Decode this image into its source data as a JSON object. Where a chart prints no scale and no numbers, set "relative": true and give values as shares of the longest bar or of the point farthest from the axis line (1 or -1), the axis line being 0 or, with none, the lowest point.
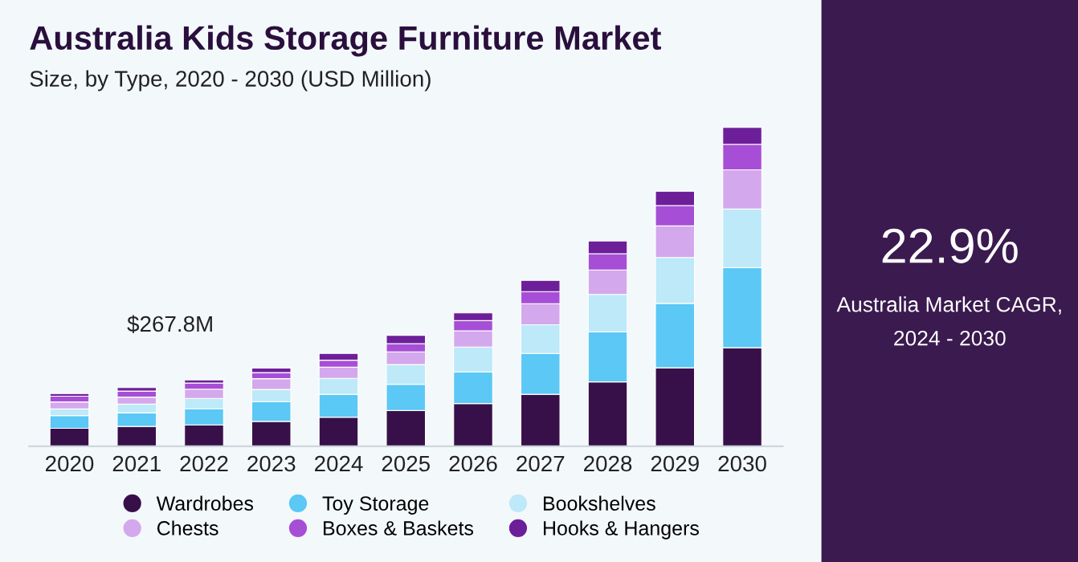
{
  "chart_data": {
    "type": "bar",
    "title": "Australia Kids Storage Furniture Market",
    "subtitle": "Size, by Type, 2020 - 2030 (USD Million)",
    "categories": [
      "2020",
      "2021",
      "2022",
      "2023",
      "2024",
      "2025",
      "2026",
      "2027",
      "2028",
      "2029",
      "2030"
    ],
    "stacked": true,
    "relative": true,
    "grid": false,
    "legend": "bottom",
    "series": [
      {
        "name": "Wardrobes",
        "color": "#37104a",
        "values": [
          0.056,
          0.062,
          0.067,
          0.078,
          0.091,
          0.112,
          0.134,
          0.163,
          0.202,
          0.246,
          0.309
        ]
      },
      {
        "name": "Toy Storage",
        "color": "#5bc8f5",
        "values": [
          0.04,
          0.043,
          0.051,
          0.062,
          0.072,
          0.082,
          0.099,
          0.128,
          0.157,
          0.202,
          0.251
        ]
      },
      {
        "name": "Bookshelves",
        "color": "#bde9f9",
        "values": [
          0.021,
          0.027,
          0.032,
          0.038,
          0.05,
          0.062,
          0.078,
          0.09,
          0.117,
          0.144,
          0.184
        ]
      },
      {
        "name": "Chests",
        "color": "#d4a8ec",
        "values": [
          0.022,
          0.022,
          0.029,
          0.034,
          0.035,
          0.04,
          0.051,
          0.066,
          0.077,
          0.099,
          0.123
        ]
      },
      {
        "name": "Boxes & Baskets",
        "color": "#a64fd6",
        "values": [
          0.018,
          0.019,
          0.019,
          0.019,
          0.022,
          0.026,
          0.032,
          0.038,
          0.051,
          0.064,
          0.08
        ]
      },
      {
        "name": "Hooks & Hangers",
        "color": "#6d1f9a",
        "values": [
          0.008,
          0.011,
          0.01,
          0.014,
          0.021,
          0.026,
          0.024,
          0.035,
          0.04,
          0.045,
          0.053
        ]
      }
    ],
    "annotations": [
      "$267.8M",
      "22.9%",
      "Australia Market CAGR,",
      "2024 - 2030"
    ]
  }
}
